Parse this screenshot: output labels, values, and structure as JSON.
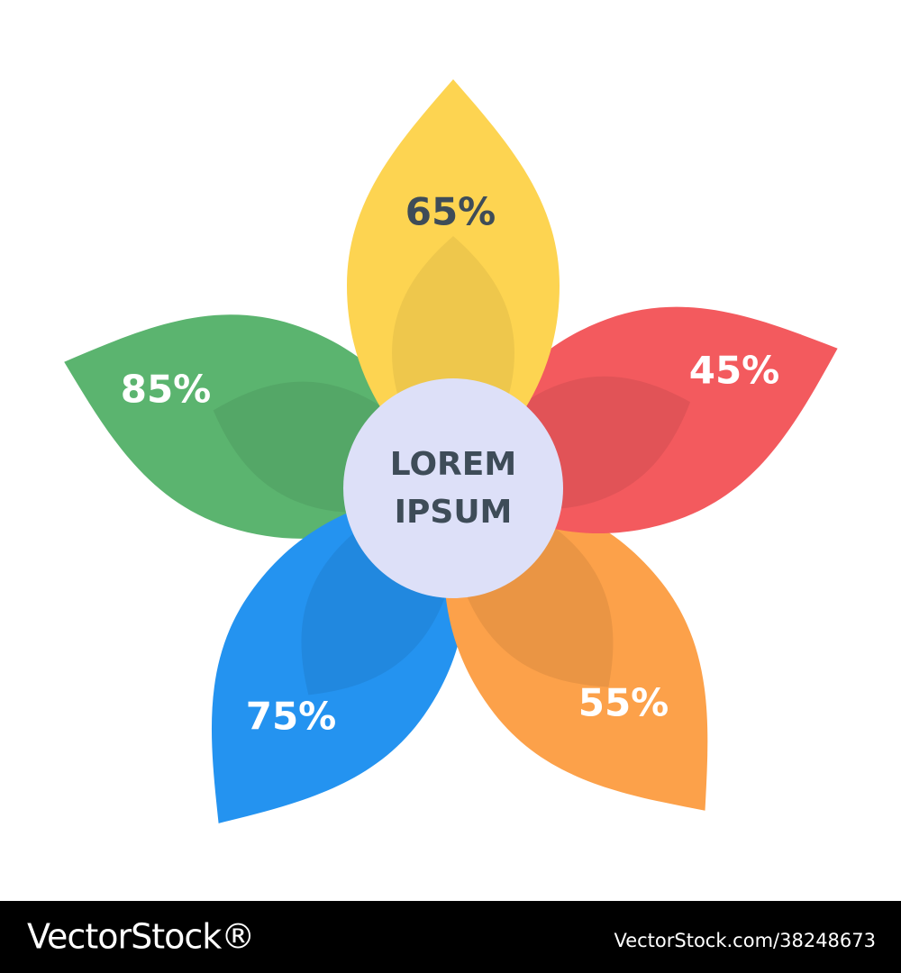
{
  "petals": [
    {
      "label": "65%"
    },
    {
      "label": "45%"
    },
    {
      "label": "55%"
    },
    {
      "label": "75%"
    },
    {
      "label": "85%"
    }
  ],
  "center": {
    "lines": [
      "LOREM",
      "IPSUM"
    ]
  },
  "footer": {
    "brand": "VectorStock®",
    "id": "VectorStock.com/38248673"
  }
}
